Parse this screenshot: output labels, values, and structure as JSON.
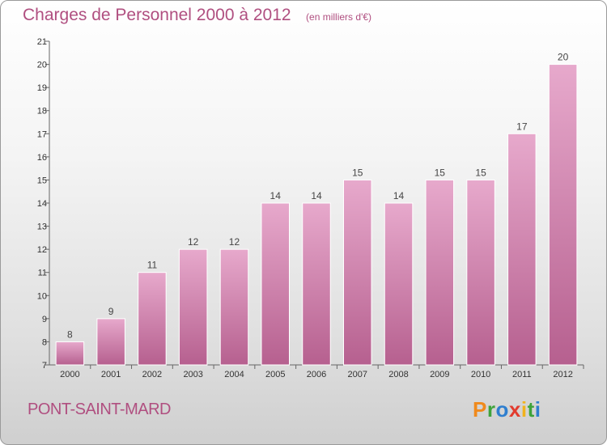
{
  "header": {
    "title": "Charges de Personnel 2000 à 2012",
    "unit": "(en milliers d'€)"
  },
  "footer": {
    "commune": "PONT-SAINT-MARD",
    "logo": {
      "letters": [
        "P",
        "r",
        "o",
        "x",
        "i",
        "t",
        "i"
      ],
      "colors": [
        "#f08a1c",
        "#3ea33a",
        "#2f7fcf",
        "#e23b2e",
        "#f1b21c",
        "#3ea33a",
        "#2f7fcf"
      ]
    }
  },
  "colors": {
    "accent": "#b04f80",
    "bar_light": "#e7a9cc",
    "bar_dark": "#b6608f"
  },
  "chart_data": {
    "type": "bar",
    "title": "Charges de Personnel 2000 à 2012",
    "categories": [
      "2000",
      "2001",
      "2002",
      "2003",
      "2004",
      "2005",
      "2006",
      "2007",
      "2008",
      "2009",
      "2010",
      "2011",
      "2012"
    ],
    "values": [
      8,
      9,
      11,
      12,
      12,
      14,
      14,
      15,
      14,
      15,
      15,
      17,
      20
    ],
    "yticks": [
      7,
      8,
      9,
      10,
      11,
      12,
      13,
      14,
      15,
      16,
      17,
      18,
      19,
      20,
      21
    ],
    "ylim": [
      7,
      21
    ],
    "grid": false,
    "data_labels": true
  }
}
